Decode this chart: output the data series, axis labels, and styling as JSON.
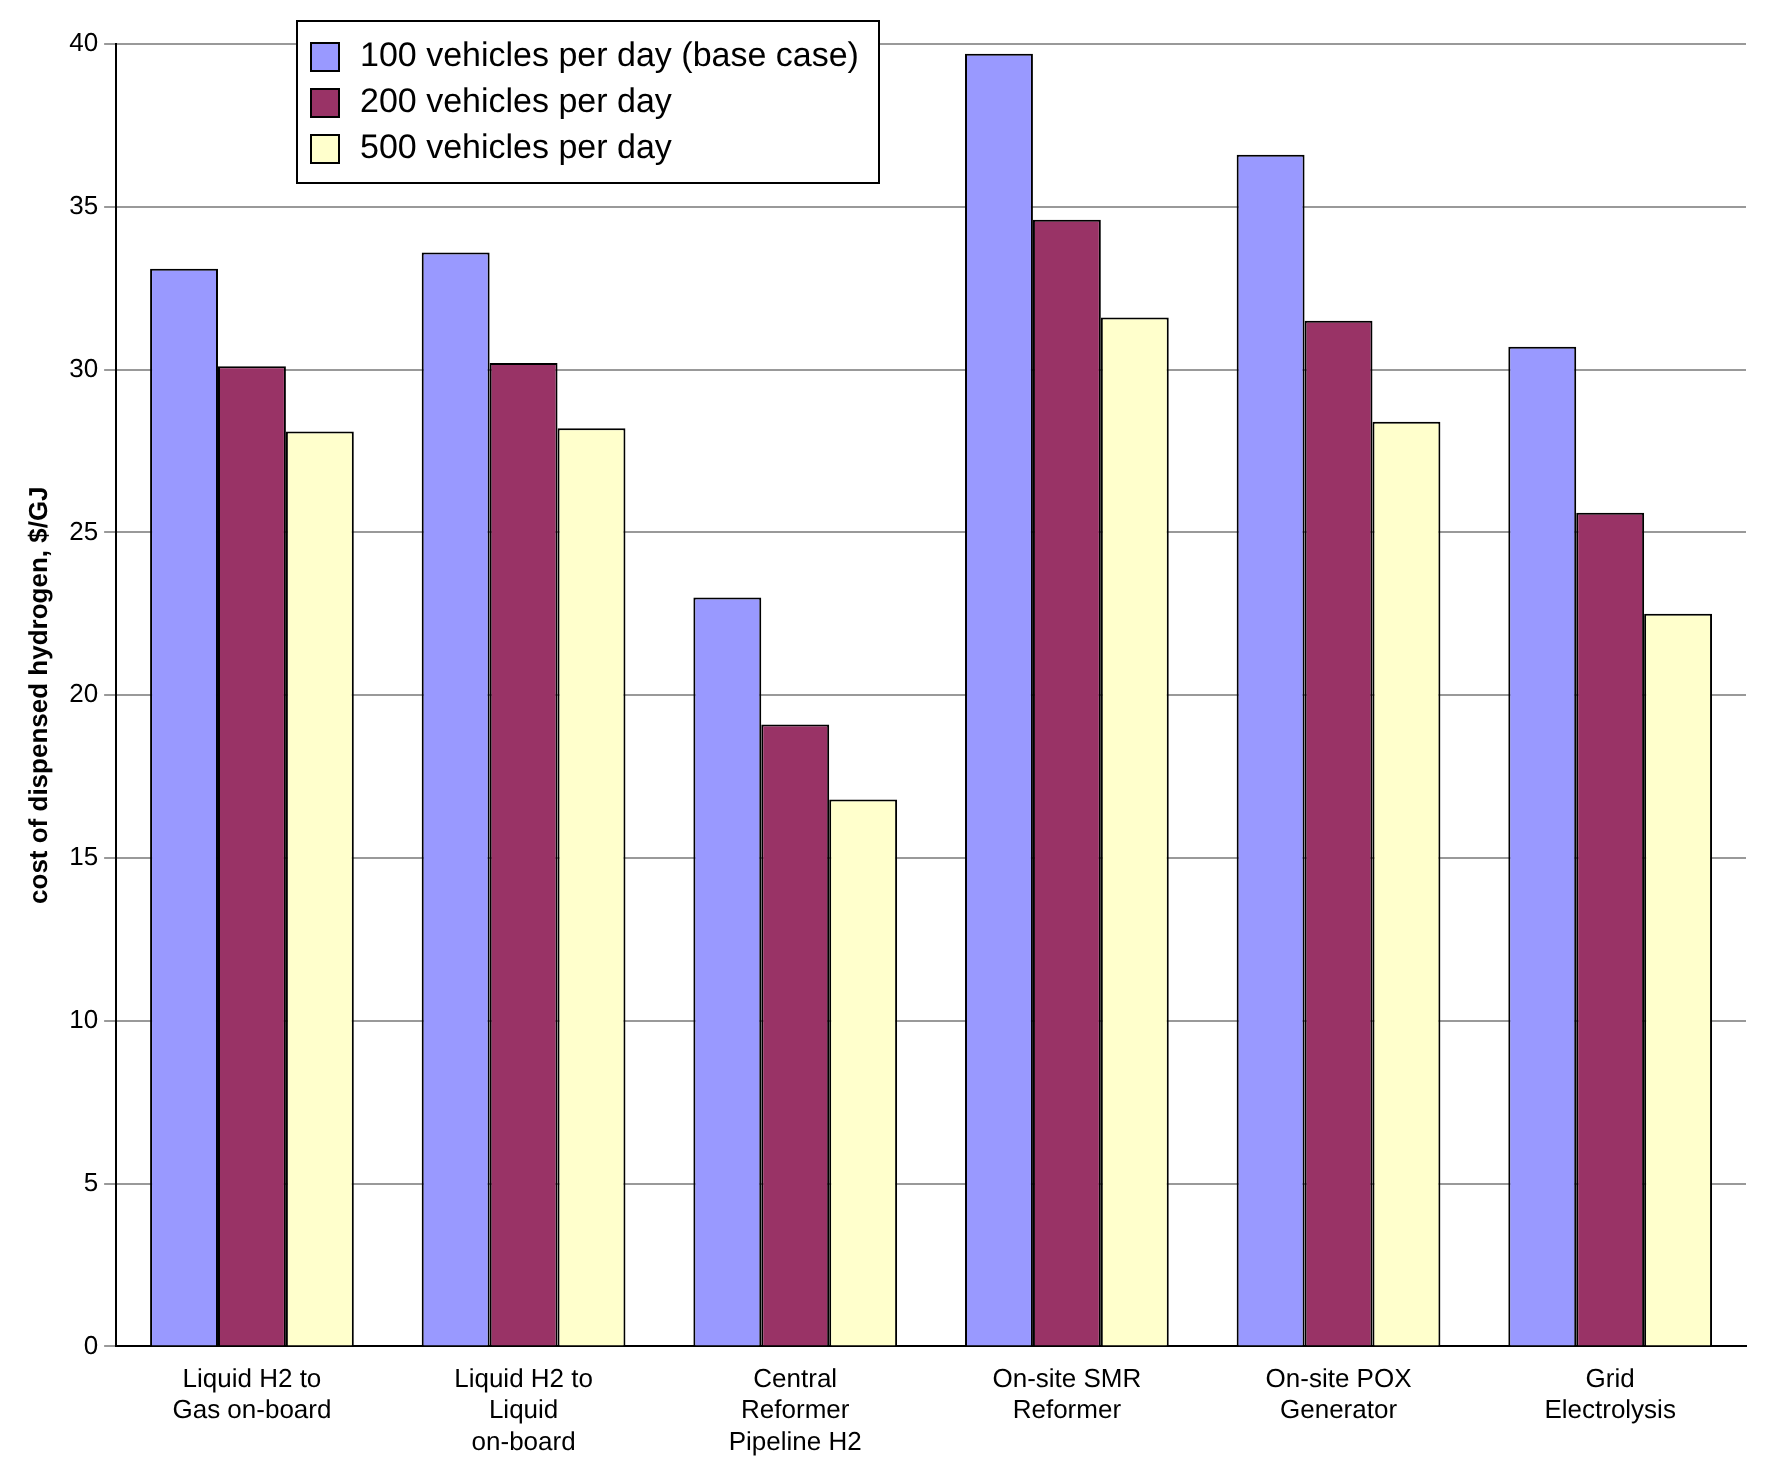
{
  "chart_data": {
    "type": "bar",
    "ylabel": "cost of dispensed hydrogen, $/GJ",
    "categories": [
      "Liquid H2 to Gas on-board",
      "Liquid H2 to Liquid on-board",
      "Central Reformer Pipeline H2",
      "On-site SMR Reformer",
      "On-site POX Generator",
      "Grid Electrolysis"
    ],
    "series": [
      {
        "name": "100 vehicles per day (base case)",
        "color": "#9999ff",
        "values": [
          33.1,
          33.6,
          23.0,
          39.7,
          36.6,
          30.7
        ]
      },
      {
        "name": "200 vehicles per day",
        "color": "#993366",
        "values": [
          30.1,
          30.2,
          19.1,
          34.6,
          31.5,
          25.6
        ]
      },
      {
        "name": "500 vehicles per day",
        "color": "#ffffcc",
        "values": [
          28.1,
          28.2,
          16.8,
          31.6,
          28.4,
          22.5
        ]
      }
    ],
    "ylim": [
      0,
      40
    ],
    "yticks": [
      0,
      5,
      10,
      15,
      20,
      25,
      30,
      35,
      40
    ],
    "grid": "y",
    "legend": "top left"
  }
}
